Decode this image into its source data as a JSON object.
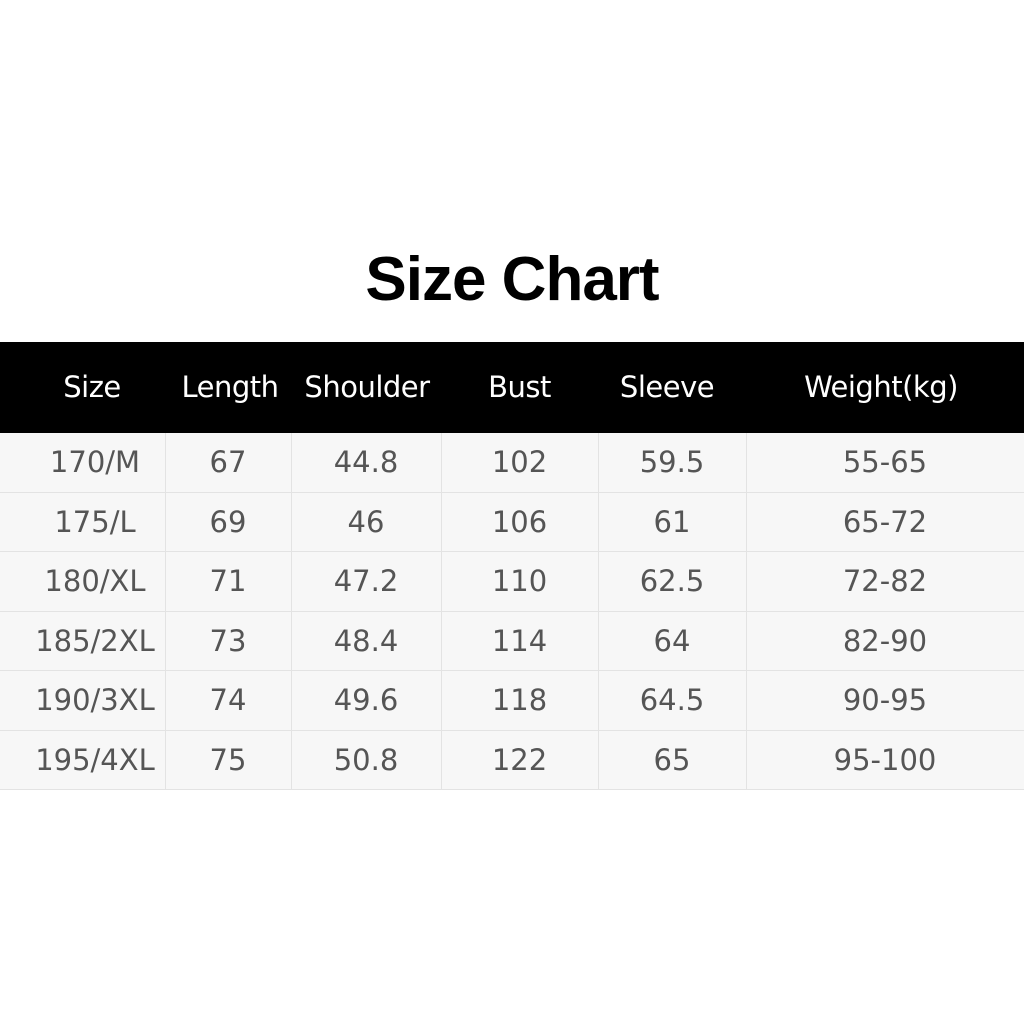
{
  "title": "Size Chart",
  "colors": {
    "header_bg": "#000000",
    "header_text": "#ffffff",
    "row_bg": "#f7f7f7",
    "cell_text": "#555555"
  },
  "table": {
    "headers": [
      "Size",
      "Length",
      "Shoulder",
      "Bust",
      "Sleeve",
      "Weight(kg)"
    ],
    "rows": [
      [
        "170/M",
        "67",
        "44.8",
        "102",
        "59.5",
        "55-65"
      ],
      [
        "175/L",
        "69",
        "46",
        "106",
        "61",
        "65-72"
      ],
      [
        "180/XL",
        "71",
        "47.2",
        "110",
        "62.5",
        "72-82"
      ],
      [
        "185/2XL",
        "73",
        "48.4",
        "114",
        "64",
        "82-90"
      ],
      [
        "190/3XL",
        "74",
        "49.6",
        "118",
        "64.5",
        "90-95"
      ],
      [
        "195/4XL",
        "75",
        "50.8",
        "122",
        "65",
        "95-100"
      ]
    ]
  }
}
